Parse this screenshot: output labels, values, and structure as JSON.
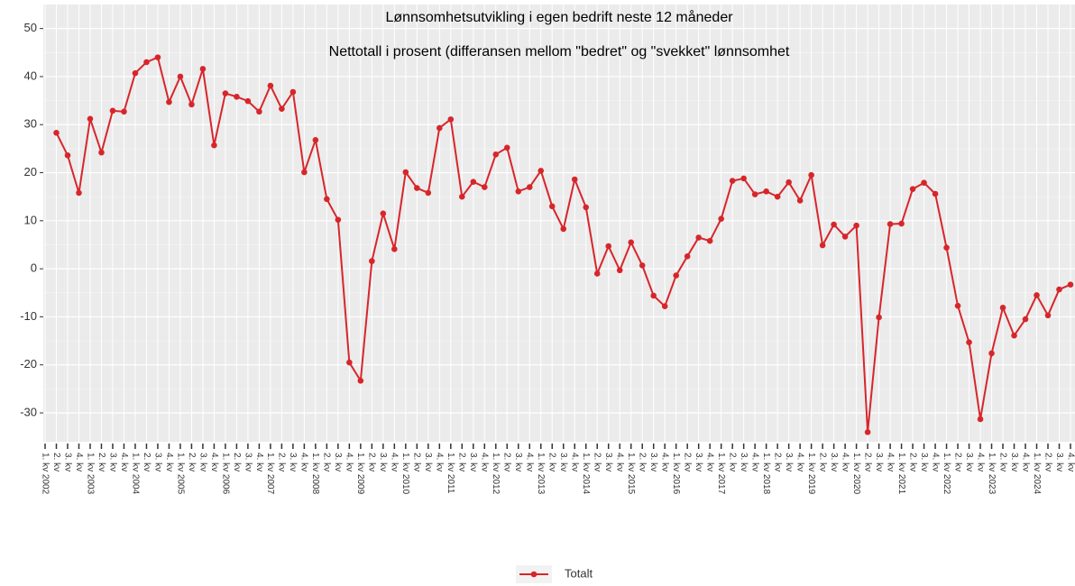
{
  "chart_data": {
    "type": "line",
    "title": "Lønnsomhetsutvikling i egen bedrift neste 12 måneder",
    "subtitle": "Nettotall i prosent (differansen mellom \"bedret\" og \"svekket\" lønnsomhet",
    "categories": [
      "1. kv 2002",
      "2. kv",
      "3. kv",
      "4. kv",
      "1. kv 2003",
      "2. kv",
      "3. kv",
      "4. kv",
      "1. kv 2004",
      "2. kv",
      "3. kv",
      "4. kv",
      "1. kv 2005",
      "2. kv",
      "3. kv",
      "4. kv",
      "1. kv 2006",
      "2. kv",
      "3. kv",
      "4. kv",
      "1. kv 2007",
      "2. kv",
      "3. kv",
      "4. kv",
      "1. kv 2008",
      "2. kv",
      "3. kv",
      "4. kv",
      "1. kv 2009",
      "2. kv",
      "3. kv",
      "4. kv",
      "1. kv 2010",
      "2. kv",
      "3. kv",
      "4. kv",
      "1. kv 2011",
      "2. kv",
      "3. kv",
      "4. kv",
      "1. kv 2012",
      "2. kv",
      "3. kv",
      "4. kv",
      "1. kv 2013",
      "2. kv",
      "3. kv",
      "4. kv",
      "1. kv 2014",
      "2. kv",
      "3. kv",
      "4. kv",
      "1. kv 2015",
      "2. kv",
      "3. kv",
      "4. kv",
      "1. kv 2016",
      "2. kv",
      "3. kv",
      "4. kv",
      "1. kv 2017",
      "2. kv",
      "3. kv",
      "4. kv",
      "1. kv 2018",
      "2. kv",
      "3. kv",
      "4. kv",
      "1. kv 2019",
      "2. kv",
      "3. kv",
      "4. kv",
      "1. kv 2020",
      "2. kv",
      "3. kv",
      "4. kv",
      "1. kv 2021",
      "2. kv",
      "3. kv",
      "4. kv",
      "1. kv 2022",
      "2. kv",
      "3. kv",
      "4. kv",
      "1. kv 2023",
      "2. kv",
      "3. kv",
      "4. kv",
      "1. kv 2024",
      "2. kv",
      "3. kv",
      "4. kv"
    ],
    "series": [
      {
        "name": "Totalt",
        "color": "#d7262b",
        "values": [
          null,
          28.3,
          23.6,
          15.8,
          31.2,
          24.2,
          32.9,
          32.7,
          40.7,
          43.0,
          44.0,
          34.7,
          40.0,
          34.2,
          41.6,
          25.7,
          36.5,
          35.8,
          34.9,
          32.7,
          38.1,
          33.3,
          36.8,
          20.1,
          26.8,
          14.5,
          10.2,
          -19.5,
          -23.3,
          1.6,
          11.5,
          4.1,
          20.1,
          16.8,
          15.8,
          29.3,
          31.1,
          15.0,
          18.1,
          17.0,
          23.8,
          25.2,
          16.1,
          17.0,
          20.4,
          13.0,
          8.3,
          18.6,
          12.8,
          -1.0,
          4.7,
          -0.3,
          5.5,
          0.7,
          -5.6,
          -7.8,
          -1.4,
          2.6,
          6.5,
          5.8,
          10.4,
          18.3,
          18.8,
          15.5,
          16.1,
          15.0,
          18.0,
          14.2,
          19.5,
          4.9,
          9.2,
          6.7,
          9.0,
          -34.0,
          -10.1,
          9.3,
          9.4,
          16.6,
          17.9,
          15.6,
          4.4,
          -7.7,
          -15.3,
          -31.3,
          -17.6,
          -8.1,
          -13.9,
          -10.5,
          -5.5,
          -9.7,
          -4.3,
          -3.3
        ]
      }
    ],
    "ylim": [
      -36,
      55
    ],
    "yticks": [
      -30,
      -20,
      -10,
      0,
      10,
      20,
      30,
      40,
      50
    ],
    "grid": true,
    "legend_position": "bottom"
  }
}
